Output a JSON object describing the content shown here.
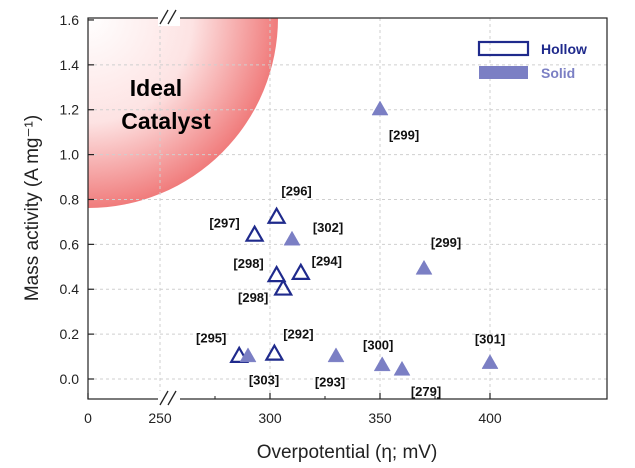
{
  "chart_data": {
    "type": "scatter",
    "xlabel": "Overpotential (η; mV)",
    "ylabel": "Mass activity (A mg⁻¹)",
    "xlim": [
      250,
      420
    ],
    "ylim": [
      -0.1,
      1.6
    ],
    "x_ticks": [
      "0",
      "250",
      "300",
      "350",
      "400"
    ],
    "y_ticks": [
      "0.0",
      "0.2",
      "0.4",
      "0.6",
      "0.8",
      "1.0",
      "1.2",
      "1.4",
      "1.6"
    ],
    "axis_break": "between 0 and 250 on the x-axis",
    "grid": true,
    "legend_position": "top-right",
    "annotation": {
      "line1": "Ideal",
      "line2": "Catalyst",
      "color": "#d62a2a"
    },
    "series": [
      {
        "name": "Hollow",
        "marker": "open-triangle",
        "color": "#1f2a8c",
        "points": [
          {
            "x": 303,
            "y": 0.72,
            "label": "[296]"
          },
          {
            "x": 293,
            "y": 0.64,
            "label": "[297]"
          },
          {
            "x": 303,
            "y": 0.46,
            "label": "[298]"
          },
          {
            "x": 306,
            "y": 0.4,
            "label": "[298]"
          },
          {
            "x": 314,
            "y": 0.47,
            "label": "[294]"
          },
          {
            "x": 286,
            "y": 0.1,
            "label": "[295]"
          },
          {
            "x": 302,
            "y": 0.11,
            "label": "[292]"
          }
        ]
      },
      {
        "name": "Solid",
        "marker": "filled-triangle",
        "color": "#7b7fc4",
        "points": [
          {
            "x": 350,
            "y": 1.2,
            "label": "[299]"
          },
          {
            "x": 310,
            "y": 0.62,
            "label": "[302]"
          },
          {
            "x": 370,
            "y": 0.49,
            "label": "[299]"
          },
          {
            "x": 290,
            "y": 0.1,
            "label": "[303]"
          },
          {
            "x": 330,
            "y": 0.1,
            "label": "[293]"
          },
          {
            "x": 351,
            "y": 0.06,
            "label": "[300]"
          },
          {
            "x": 360,
            "y": 0.04,
            "label": "[279]"
          },
          {
            "x": 400,
            "y": 0.07,
            "label": "[301]"
          }
        ]
      }
    ]
  }
}
